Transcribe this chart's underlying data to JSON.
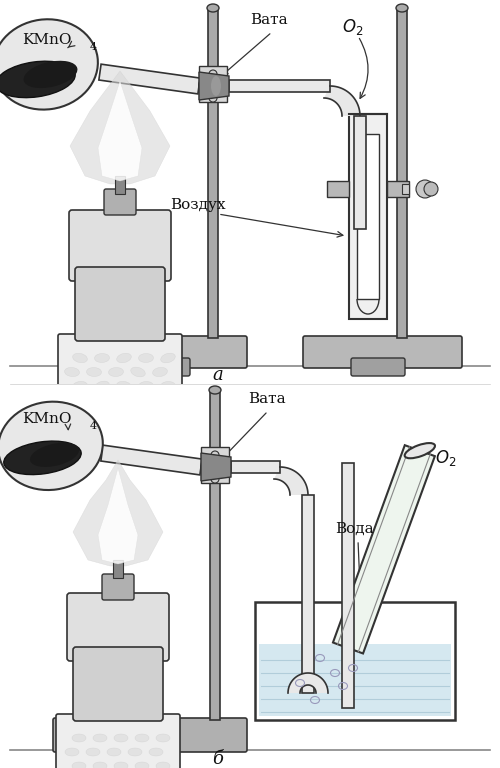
{
  "bg_color": "#ffffff",
  "line_col": "#333333",
  "gray_base": "#b0b0b0",
  "gray_rod": "#888888",
  "gray_light": "#d8d8d8",
  "gray_mid": "#aaaaaa",
  "black": "#111111",
  "dark_gray": "#555555",
  "label_a": "а",
  "label_b": "б",
  "label_kmno4": "KMnO",
  "label_kmno4_sub": "4",
  "label_vata": "Вата",
  "label_o2_main": "O",
  "label_o2_sub": "2",
  "label_vozduh": "Воздух",
  "label_voda": "Вода",
  "fig_w": 5.0,
  "fig_h": 7.68,
  "dpi": 100
}
